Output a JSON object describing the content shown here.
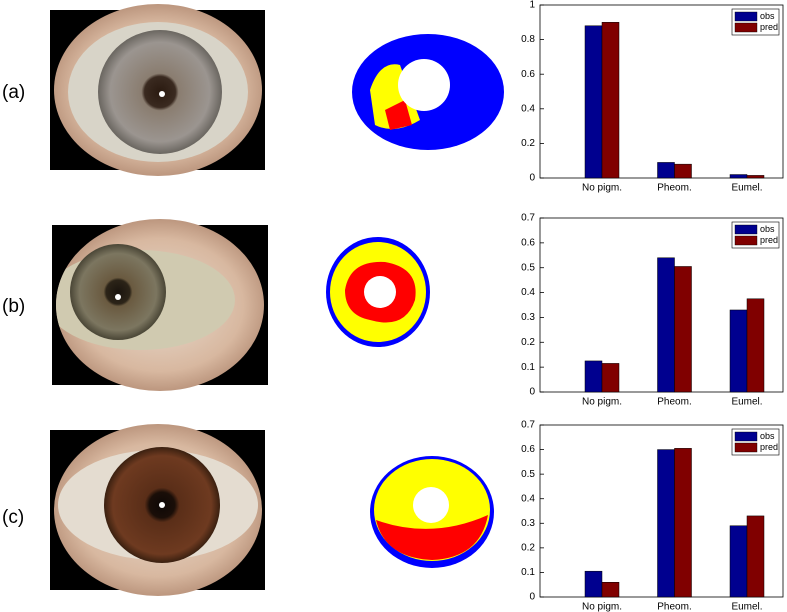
{
  "panel_labels": [
    "(a)",
    "(b)",
    "(c)"
  ],
  "chart_data": [
    {
      "type": "bar",
      "categories": [
        "No pigm.",
        "Pheom.",
        "Eumel."
      ],
      "series": [
        {
          "name": "obs",
          "color": "#00008f",
          "values": [
            0.88,
            0.09,
            0.02
          ]
        },
        {
          "name": "pred",
          "color": "#800000",
          "values": [
            0.9,
            0.08,
            0.015
          ]
        }
      ],
      "ylim": [
        0,
        1
      ],
      "yticks": [
        0,
        0.2,
        0.4,
        0.6,
        0.8,
        1
      ],
      "grid": false,
      "legend": "upper right"
    },
    {
      "type": "bar",
      "categories": [
        "No pigm.",
        "Pheom.",
        "Eumel."
      ],
      "series": [
        {
          "name": "obs",
          "color": "#00008f",
          "values": [
            0.125,
            0.54,
            0.33
          ]
        },
        {
          "name": "pred",
          "color": "#800000",
          "values": [
            0.115,
            0.505,
            0.375
          ]
        }
      ],
      "ylim": [
        0,
        0.7
      ],
      "yticks": [
        0,
        0.1,
        0.2,
        0.3,
        0.4,
        0.5,
        0.6,
        0.7
      ],
      "grid": false,
      "legend": "upper right"
    },
    {
      "type": "bar",
      "categories": [
        "No pigm.",
        "Pheom.",
        "Eumel."
      ],
      "series": [
        {
          "name": "obs",
          "color": "#00008f",
          "values": [
            0.105,
            0.6,
            0.29
          ]
        },
        {
          "name": "pred",
          "color": "#800000",
          "values": [
            0.06,
            0.605,
            0.33
          ]
        }
      ],
      "ylim": [
        0,
        0.7
      ],
      "yticks": [
        0,
        0.1,
        0.2,
        0.3,
        0.4,
        0.5,
        0.6,
        0.7
      ],
      "grid": false,
      "legend": "upper right"
    }
  ]
}
